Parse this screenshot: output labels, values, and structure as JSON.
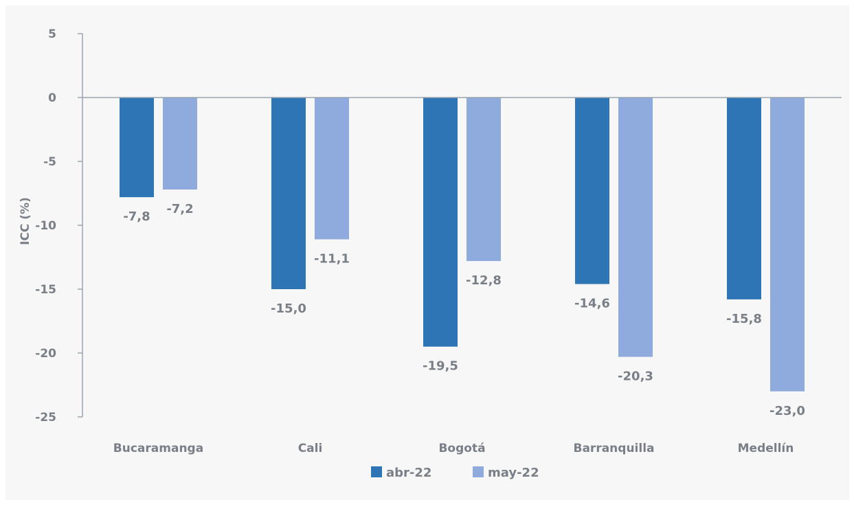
{
  "chart_data": {
    "type": "bar",
    "categories": [
      "Bucaramanga",
      "Cali",
      "Bogotá",
      "Barranquilla",
      "Medellín"
    ],
    "series": [
      {
        "name": "abr-22",
        "values": [
          -7.8,
          -15.0,
          -19.5,
          -14.6,
          -15.8
        ],
        "labels": [
          "-7,8",
          "-15,0",
          "-19,5",
          "-14,6",
          "-15,8"
        ],
        "color": "#2e75b6"
      },
      {
        "name": "may-22",
        "values": [
          -7.2,
          -11.1,
          -12.8,
          -20.3,
          -23.0
        ],
        "labels": [
          "-7,2",
          "-11,1",
          "-12,8",
          "-20,3",
          "-23,0"
        ],
        "color": "#8faadc"
      }
    ],
    "ylabel": "ICC (%)",
    "xlabel": "",
    "ylim": [
      -25,
      5
    ],
    "yticks": [
      5,
      0,
      -5,
      -10,
      -15,
      -20,
      -25
    ],
    "ytick_labels": [
      "5",
      "0",
      "-5",
      "-10",
      "-15",
      "-20",
      "-25"
    ],
    "grid": false,
    "legend": "bottom"
  }
}
